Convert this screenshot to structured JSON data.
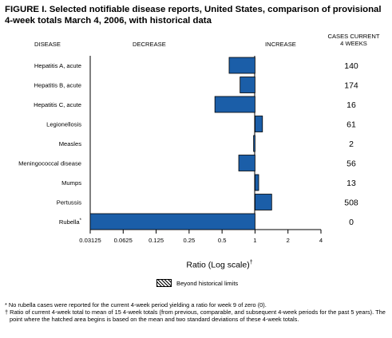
{
  "title": "FIGURE I. Selected notifiable disease reports, United States, comparison of provisional 4-week totals March 4, 2006, with historical data",
  "headers": {
    "disease": "DISEASE",
    "decrease": "DECREASE",
    "increase": "INCREASE",
    "cases_line1": "CASES CURRENT",
    "cases_line2": "4 WEEKS"
  },
  "xaxis": {
    "label": "Ratio (Log scale)",
    "label_marker": "†"
  },
  "legend": {
    "label": "Beyond historical limits"
  },
  "footnotes": {
    "star": "* No rubella cases were reported for the current 4-week period yielding a ratio for week 9 of zero (0).",
    "dagger": "† Ratio of current 4-week total to mean of 15 4-week totals (from previous, comparable, and subsequent 4-week periods for the past 5 years). The point where the hatched area begins is based on the mean and two standard deviations of these 4-week totals."
  },
  "colors": {
    "bar": "#1b5ea8",
    "bar_edge": "#000000"
  },
  "chart_data": {
    "type": "bar",
    "orientation": "horizontal",
    "scale": "log2",
    "baseline": 1,
    "xlim": [
      0.03125,
      4
    ],
    "xticks": [
      "0.03125",
      "0.0625",
      "0.125",
      "0.25",
      "0.5",
      "1",
      "2",
      "4"
    ],
    "xtick_values": [
      0.03125,
      0.0625,
      0.125,
      0.25,
      0.5,
      1,
      2,
      4
    ],
    "categories": [
      {
        "name": "Hepatitis A, acute",
        "marker": "",
        "ratio": 0.58,
        "cases": "140"
      },
      {
        "name": "Hepatitis B, acute",
        "marker": "",
        "ratio": 0.73,
        "cases": "174"
      },
      {
        "name": "Hepatitis C, acute",
        "marker": "",
        "ratio": 0.43,
        "cases": "16"
      },
      {
        "name": "Legionellosis",
        "marker": "",
        "ratio": 1.17,
        "cases": "61"
      },
      {
        "name": "Measles",
        "marker": "",
        "ratio": 0.97,
        "cases": "2"
      },
      {
        "name": "Meningococcal disease",
        "marker": "",
        "ratio": 0.71,
        "cases": "56"
      },
      {
        "name": "Mumps",
        "marker": "",
        "ratio": 1.08,
        "cases": "13"
      },
      {
        "name": "Pertussis",
        "marker": "",
        "ratio": 1.42,
        "cases": "508"
      },
      {
        "name": "Rubella",
        "marker": "*",
        "ratio": 0.03125,
        "cases": "0"
      }
    ]
  }
}
